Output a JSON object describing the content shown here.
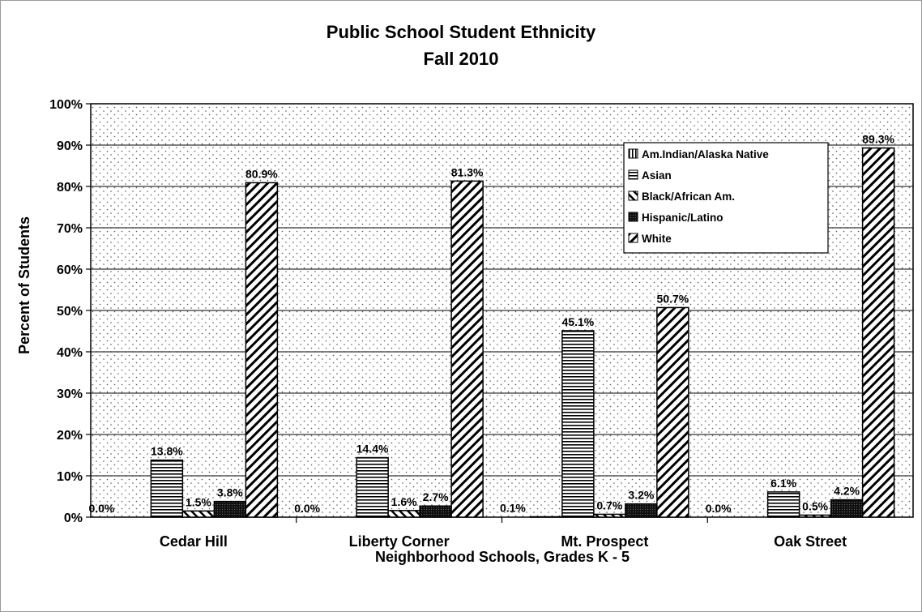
{
  "chart_data": {
    "type": "bar",
    "title": "Public School Student Ethnicity",
    "subtitle": "Fall 2010",
    "xlabel": "Neighborhood Schools, Grades K - 5",
    "ylabel": "Percent of Students",
    "categories": [
      "Cedar Hill",
      "Liberty Corner",
      "Mt. Prospect",
      "Oak Street"
    ],
    "ylim": [
      0,
      100
    ],
    "yticks": [
      "0%",
      "10%",
      "20%",
      "30%",
      "40%",
      "50%",
      "60%",
      "70%",
      "80%",
      "90%",
      "100%"
    ],
    "grid": true,
    "legend_position": "top-right",
    "series": [
      {
        "name": "Am.Indian/Alaska Native",
        "pattern": "vertical",
        "values": [
          0.0,
          0.0,
          0.1,
          0.0
        ],
        "labels": [
          "0.0%",
          "0.0%",
          "0.1%",
          "0.0%"
        ]
      },
      {
        "name": "Asian",
        "pattern": "horizontal",
        "values": [
          13.8,
          14.4,
          45.1,
          6.1
        ],
        "labels": [
          "13.8%",
          "14.4%",
          "45.1%",
          "6.1%"
        ]
      },
      {
        "name": "Black/African Am.",
        "pattern": "backslash",
        "values": [
          1.5,
          1.6,
          0.7,
          0.5
        ],
        "labels": [
          "1.5%",
          "1.6%",
          "0.7%",
          "0.5%"
        ]
      },
      {
        "name": "Hispanic/Latino",
        "pattern": "dark",
        "values": [
          3.8,
          2.7,
          3.2,
          4.2
        ],
        "labels": [
          "3.8%",
          "2.7%",
          "3.2%",
          "4.2%"
        ]
      },
      {
        "name": "White",
        "pattern": "slash",
        "values": [
          80.9,
          81.3,
          50.7,
          89.3
        ],
        "labels": [
          "80.9%",
          "81.3%",
          "50.7%",
          "89.3%"
        ]
      }
    ]
  }
}
